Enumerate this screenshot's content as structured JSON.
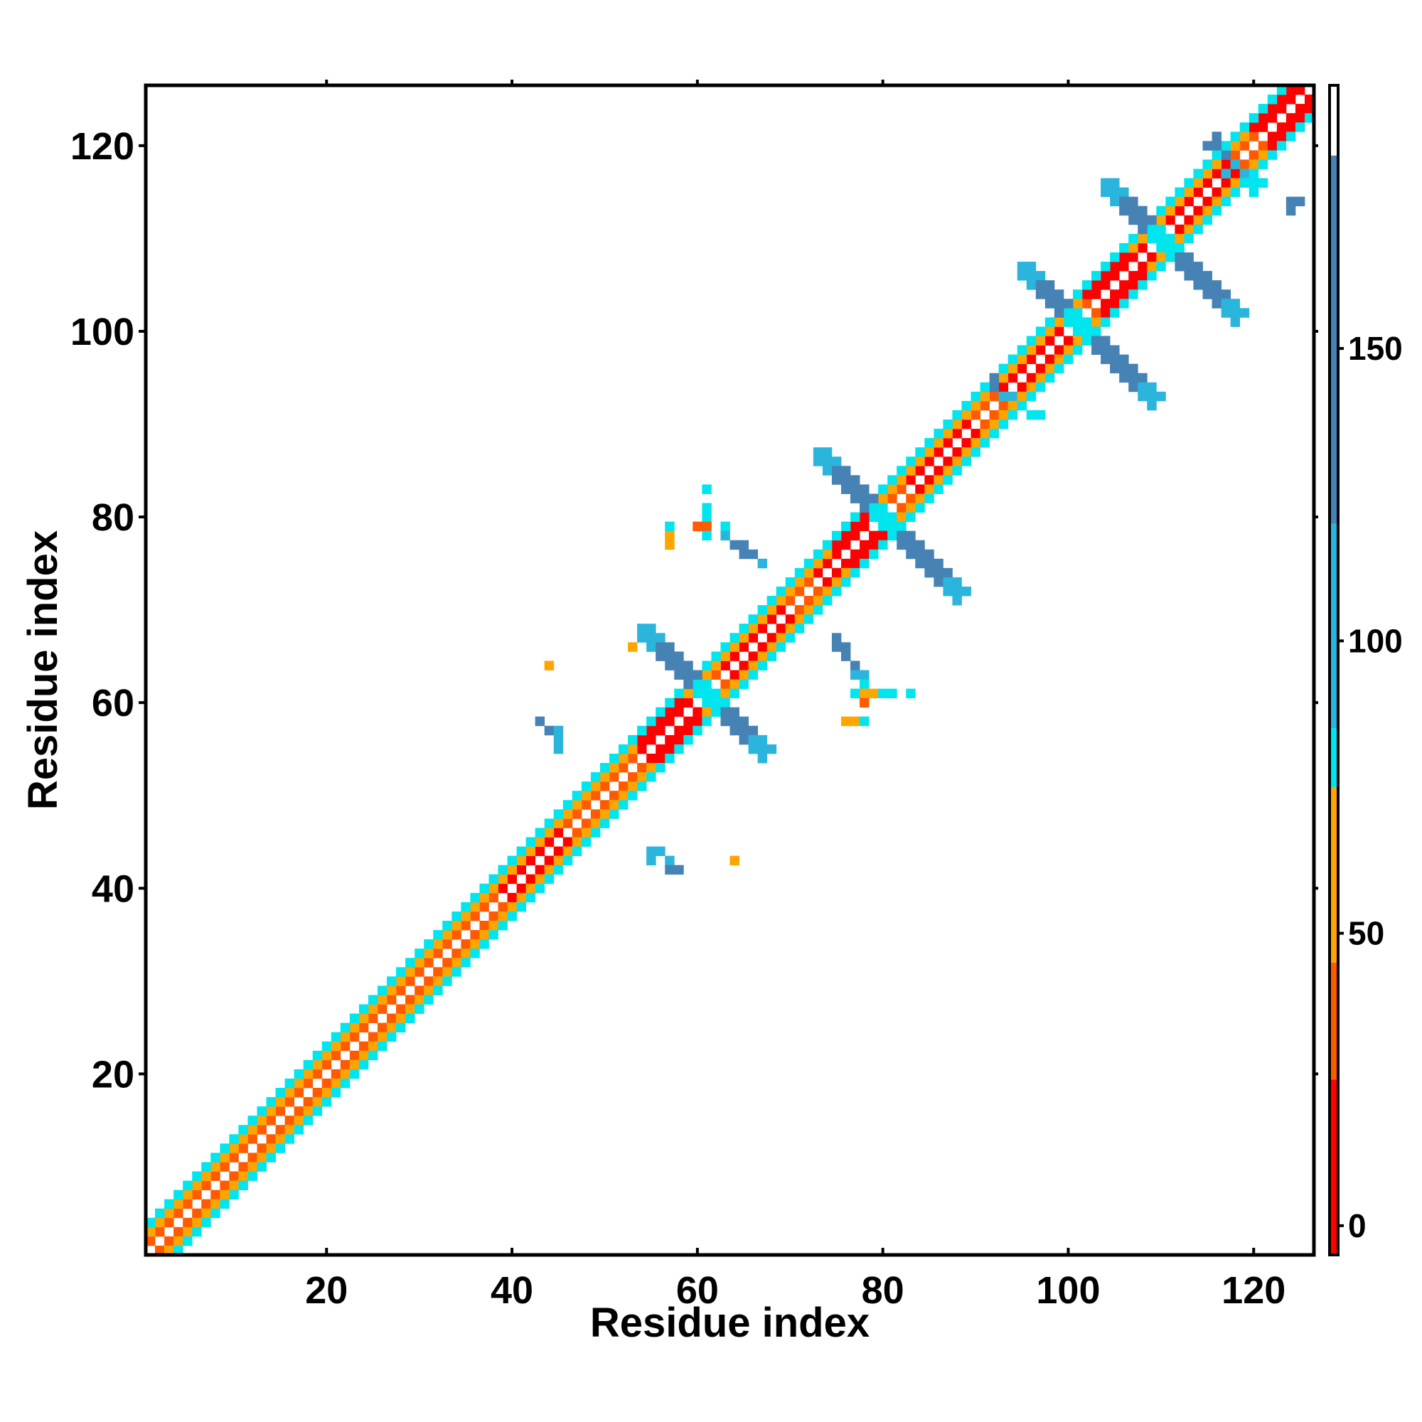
{
  "chart_data": {
    "type": "heatmap",
    "title": "",
    "xlabel": "Residue index",
    "ylabel": "Residue index",
    "xlim": [
      0.5,
      126.5
    ],
    "ylim": [
      0.5,
      126.5
    ],
    "x_ticks": [
      20,
      40,
      60,
      80,
      100,
      120
    ],
    "y_ticks": [
      20,
      40,
      60,
      80,
      100,
      120
    ],
    "x_tick_labels": [
      "20",
      "40",
      "60",
      "80",
      "100",
      "120"
    ],
    "y_tick_labels": [
      "20",
      "40",
      "60",
      "80",
      "100",
      "120"
    ],
    "grid": false,
    "legend": "none",
    "colorbar": {
      "position": "right",
      "range": [
        -5,
        195
      ],
      "ticks": [
        0,
        50,
        100,
        150
      ],
      "tick_labels": [
        "0",
        "50",
        "100",
        "150"
      ],
      "bands": [
        {
          "from": -5,
          "to": 25,
          "color": "#ff0000"
        },
        {
          "from": 25,
          "to": 45,
          "color": "#ff5a00"
        },
        {
          "from": 45,
          "to": 75,
          "color": "#ffa500"
        },
        {
          "from": 75,
          "to": 85,
          "color": "#00e5ee"
        },
        {
          "from": 85,
          "to": 120,
          "color": "#2bb5dd"
        },
        {
          "from": 120,
          "to": 183,
          "color": "#4682b4"
        },
        {
          "from": 183,
          "to": 195,
          "color": "#ffffff"
        }
      ]
    },
    "category_colors": {
      "helix": "#ff0000",
      "helix_near": "#ff5a00",
      "helix_far": "#ffa500",
      "contact": "#00e5ee",
      "sheet_mid": "#2bb5dd",
      "sheet_far": "#4682b4"
    },
    "diagonal_bands": [
      {
        "from": 2,
        "to": 126,
        "offset": 1,
        "category": "helix_near"
      },
      {
        "from": 2,
        "to": 126,
        "offset": 2,
        "category": "helix_far"
      },
      {
        "from": 2,
        "to": 126,
        "offset": 3,
        "category": "contact"
      },
      {
        "from": 40,
        "to": 46,
        "offset": 1,
        "category": "helix"
      },
      {
        "from": 55,
        "to": 60,
        "offset": 1,
        "category": "helix"
      },
      {
        "from": 56,
        "to": 60,
        "offset": 2,
        "category": "helix"
      },
      {
        "from": 64,
        "to": 70,
        "offset": 1,
        "category": "helix"
      },
      {
        "from": 74,
        "to": 80,
        "offset": 1,
        "category": "helix"
      },
      {
        "from": 77,
        "to": 80,
        "offset": 2,
        "category": "helix"
      },
      {
        "from": 84,
        "to": 90,
        "offset": 1,
        "category": "helix"
      },
      {
        "from": 94,
        "to": 100,
        "offset": 1,
        "category": "helix"
      },
      {
        "from": 104,
        "to": 110,
        "offset": 1,
        "category": "helix"
      },
      {
        "from": 104,
        "to": 108,
        "offset": 2,
        "category": "helix"
      },
      {
        "from": 112,
        "to": 118,
        "offset": 1,
        "category": "helix"
      },
      {
        "from": 122,
        "to": 126,
        "offset": 1,
        "category": "helix"
      },
      {
        "from": 122,
        "to": 126,
        "offset": 2,
        "category": "helix"
      }
    ],
    "antidiagonal_segments": [
      {
        "center": 61,
        "from": 54,
        "to": 67,
        "width": 2,
        "category": "sheet_far",
        "end_category": "sheet_mid"
      },
      {
        "center": 80,
        "from": 73,
        "to": 88,
        "width": 2,
        "category": "sheet_far",
        "end_category": "sheet_mid"
      },
      {
        "center": 101,
        "from": 95,
        "to": 109,
        "width": 2,
        "category": "sheet_far",
        "end_category": "sheet_mid"
      },
      {
        "center": 110,
        "from": 104,
        "to": 118,
        "width": 2,
        "category": "sheet_far",
        "end_category": "sheet_mid"
      }
    ],
    "extra_cells": [
      {
        "x": 55,
        "y": 44,
        "category": "sheet_mid"
      },
      {
        "x": 56,
        "y": 44,
        "category": "sheet_mid"
      },
      {
        "x": 55,
        "y": 43,
        "category": "sheet_mid"
      },
      {
        "x": 57,
        "y": 43,
        "category": "sheet_mid"
      },
      {
        "x": 57,
        "y": 42,
        "category": "sheet_far"
      },
      {
        "x": 58,
        "y": 42,
        "category": "sheet_far"
      },
      {
        "x": 64,
        "y": 43,
        "category": "helix_far"
      },
      {
        "x": 43,
        "y": 58,
        "category": "sheet_far"
      },
      {
        "x": 44,
        "y": 57,
        "category": "sheet_far"
      },
      {
        "x": 45,
        "y": 57,
        "category": "sheet_mid"
      },
      {
        "x": 45,
        "y": 56,
        "category": "sheet_mid"
      },
      {
        "x": 45,
        "y": 55,
        "category": "sheet_mid"
      },
      {
        "x": 44,
        "y": 64,
        "category": "helix_far"
      },
      {
        "x": 53,
        "y": 66,
        "category": "helix_far"
      },
      {
        "x": 57,
        "y": 78,
        "category": "helix_far"
      },
      {
        "x": 57,
        "y": 77,
        "category": "helix_far"
      },
      {
        "x": 57,
        "y": 79,
        "category": "contact"
      },
      {
        "x": 61,
        "y": 83,
        "category": "contact"
      },
      {
        "x": 61,
        "y": 81,
        "category": "contact"
      },
      {
        "x": 61,
        "y": 80,
        "category": "contact"
      },
      {
        "x": 61,
        "y": 79,
        "category": "helix_near"
      },
      {
        "x": 60,
        "y": 79,
        "category": "helix_near"
      },
      {
        "x": 61,
        "y": 78,
        "category": "contact"
      },
      {
        "x": 63,
        "y": 79,
        "category": "contact"
      },
      {
        "x": 63,
        "y": 78,
        "category": "sheet_mid"
      },
      {
        "x": 64,
        "y": 77,
        "category": "sheet_far"
      },
      {
        "x": 65,
        "y": 77,
        "category": "sheet_far"
      },
      {
        "x": 65,
        "y": 76,
        "category": "sheet_far"
      },
      {
        "x": 66,
        "y": 76,
        "category": "sheet_far"
      },
      {
        "x": 67,
        "y": 75,
        "category": "sheet_mid"
      },
      {
        "x": 75,
        "y": 67,
        "category": "sheet_far"
      },
      {
        "x": 75,
        "y": 66,
        "category": "sheet_far"
      },
      {
        "x": 76,
        "y": 66,
        "category": "sheet_far"
      },
      {
        "x": 76,
        "y": 65,
        "category": "sheet_far"
      },
      {
        "x": 77,
        "y": 64,
        "category": "sheet_far"
      },
      {
        "x": 77,
        "y": 63,
        "category": "sheet_mid"
      },
      {
        "x": 78,
        "y": 63,
        "category": "sheet_mid"
      },
      {
        "x": 78,
        "y": 62,
        "category": "contact"
      },
      {
        "x": 77,
        "y": 61,
        "category": "contact"
      },
      {
        "x": 78,
        "y": 61,
        "category": "helix_far"
      },
      {
        "x": 79,
        "y": 61,
        "category": "helix_far"
      },
      {
        "x": 80,
        "y": 61,
        "category": "contact"
      },
      {
        "x": 81,
        "y": 61,
        "category": "contact"
      },
      {
        "x": 83,
        "y": 61,
        "category": "contact"
      },
      {
        "x": 78,
        "y": 60,
        "category": "helix_near"
      },
      {
        "x": 76,
        "y": 58,
        "category": "helix_far"
      },
      {
        "x": 77,
        "y": 58,
        "category": "helix_far"
      },
      {
        "x": 78,
        "y": 58,
        "category": "contact"
      },
      {
        "x": 92,
        "y": 95,
        "category": "sheet_far"
      },
      {
        "x": 92,
        "y": 94,
        "category": "sheet_far"
      },
      {
        "x": 93,
        "y": 93,
        "category": "sheet_mid"
      },
      {
        "x": 94,
        "y": 93,
        "category": "sheet_mid"
      },
      {
        "x": 95,
        "y": 92,
        "category": "contact"
      },
      {
        "x": 96,
        "y": 91,
        "category": "contact"
      },
      {
        "x": 97,
        "y": 91,
        "category": "contact"
      },
      {
        "x": 115,
        "y": 120,
        "category": "sheet_far"
      },
      {
        "x": 116,
        "y": 120,
        "category": "sheet_far"
      },
      {
        "x": 116,
        "y": 121,
        "category": "sheet_far"
      },
      {
        "x": 117,
        "y": 119,
        "category": "sheet_far"
      },
      {
        "x": 118,
        "y": 118,
        "category": "sheet_mid"
      },
      {
        "x": 117,
        "y": 117,
        "category": "sheet_mid"
      },
      {
        "x": 119,
        "y": 117,
        "category": "sheet_mid"
      },
      {
        "x": 120,
        "y": 116,
        "category": "contact"
      },
      {
        "x": 121,
        "y": 116,
        "category": "contact"
      },
      {
        "x": 120,
        "y": 115,
        "category": "contact"
      },
      {
        "x": 124,
        "y": 114,
        "category": "sheet_far"
      },
      {
        "x": 125,
        "y": 114,
        "category": "sheet_far"
      },
      {
        "x": 124,
        "y": 113,
        "category": "sheet_far"
      }
    ]
  }
}
